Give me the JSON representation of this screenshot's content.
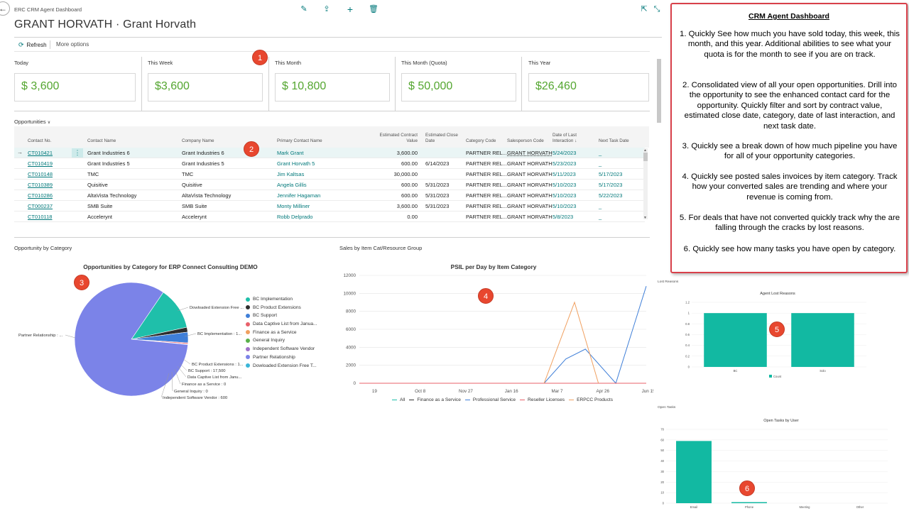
{
  "app_title": "ERC CRM Agent Dashboard",
  "page_title": "GRANT HORVATH · Grant Horvath",
  "toolbar": {
    "back_icon": "arrow-left-icon",
    "edit_icon": "pencil-icon",
    "share_icon": "share-icon",
    "new_icon": "plus-icon",
    "delete_icon": "trash-icon",
    "popout_icon": "popout-icon",
    "collapse_icon": "collapse-icon"
  },
  "actions": {
    "refresh": "Refresh",
    "more": "More options"
  },
  "cues": [
    {
      "label": "Today",
      "value": "$ 3,600"
    },
    {
      "label": "This Week",
      "value": "$3,600"
    },
    {
      "label": "This Month",
      "value": "$ 10,800"
    },
    {
      "label": "This Month (Quota)",
      "value": "$ 50,000"
    },
    {
      "label": "This Year",
      "value": "$26,460"
    }
  ],
  "opportunities": {
    "section_label": "Opportunities",
    "columns": {
      "contact_no": "Contact No.",
      "contact_name": "Contact Name",
      "company_name": "Company Name",
      "primary_contact": "Primary Contact Name",
      "est_value_1": "Estimated Contract",
      "est_value_2": "Value",
      "est_close_1": "Estimated Close",
      "est_close_2": "Date",
      "category": "Category Code",
      "salesperson": "Salesperson Code",
      "last_int_1": "Date of Last",
      "last_int_2": "Interaction ↓",
      "next_task": "Next Task Date"
    },
    "rows": [
      {
        "contact_no": "CT010421",
        "contact_name": "Grant Industries 6",
        "company": "Grant Industries 6",
        "primary": "Mark Grant",
        "value": "3,600.00",
        "close": "",
        "category": "PARTNER REL...",
        "salesperson": "GRANT HORVATH",
        "last": "5/24/2023",
        "next": "_"
      },
      {
        "contact_no": "CT010419",
        "contact_name": "Grant Industries 5",
        "company": "Grant Industries 5",
        "primary": "Grant Horvath 5",
        "value": "600.00",
        "close": "6/14/2023",
        "category": "PARTNER REL...",
        "salesperson": "GRANT HORVATH",
        "last": "5/23/2023",
        "next": "_"
      },
      {
        "contact_no": "CT010148",
        "contact_name": "TMC",
        "company": "TMC",
        "primary": "Jim Kaltsas",
        "value": "30,000.00",
        "close": "",
        "category": "PARTNER REL...",
        "salesperson": "GRANT HORVATH",
        "last": "5/11/2023",
        "next": "5/17/2023"
      },
      {
        "contact_no": "CT010389",
        "contact_name": "Quisitive",
        "company": "Quisitive",
        "primary": "Angela Gillis",
        "value": "600.00",
        "close": "5/31/2023",
        "category": "PARTNER REL...",
        "salesperson": "GRANT HORVATH",
        "last": "5/10/2023",
        "next": "5/17/2023"
      },
      {
        "contact_no": "CT010286",
        "contact_name": "AltaVista Technology",
        "company": "AltaVista Technology",
        "primary": "Jennifer Hagaman",
        "value": "600.00",
        "close": "5/31/2023",
        "category": "PARTNER REL...",
        "salesperson": "GRANT HORVATH",
        "last": "5/10/2023",
        "next": "5/22/2023"
      },
      {
        "contact_no": "CT000237",
        "contact_name": "SMB Suite",
        "company": "SMB Suite",
        "primary": "Monty Milliner",
        "value": "3,600.00",
        "close": "5/31/2023",
        "category": "PARTNER REL...",
        "salesperson": "GRANT HORVATH",
        "last": "5/10/2023",
        "next": "_"
      },
      {
        "contact_no": "CT010118",
        "contact_name": "Accelerynt",
        "company": "Accelerynt",
        "primary": "Robb Delprado",
        "value": "0.00",
        "close": "",
        "category": "PARTNER REL...",
        "salesperson": "GRANT HORVATH",
        "last": "5/8/2023",
        "next": "_"
      }
    ]
  },
  "badges": [
    "1",
    "2",
    "3",
    "4",
    "5",
    "6"
  ],
  "callout": {
    "title": "CRM Agent Dashboard",
    "points": [
      "1. Quickly See how much you have sold today, this week, this month, and this year. Additional abilities to see what your quota is for the month to see if you are on track.",
      "2. Consolidated view of all your open opportunities. Drill into the opportunity to see the enhanced contact card for the opportunity. Quickly filter and sort by contract value, estimated close date, category, date of last interaction, and next task date.",
      "3. Quickly see a break down of how much pipeline you have for all of your opportunity categories.",
      "4. Quickly see posted sales invoices by item category. Track how your converted sales are trending and where your revenue is coming from.",
      "5. For deals that have not converted quickly track why the are falling through the cracks by lost reasons.",
      "6. Quickly see how many tasks you have open by category."
    ]
  },
  "charts": {
    "pie_section": "Opportunity by Category",
    "line_section": "Sales by Item Cat/Resource Group",
    "lost_section": "Lost Reasons",
    "tasks_section": "Open Tasks"
  },
  "chart_data": [
    {
      "type": "pie",
      "title": "Opportunities by Category for ERP Connect Consulting DEMO",
      "categories": [
        "BC Implementation",
        "BC Product Extensions",
        "BC Support",
        "Data Captive List from Janua...",
        "Finance as a Service",
        "General Inquiry",
        "Independent Software Vendor",
        "Partner Relationship",
        "Dowloaded Extension Free T..."
      ],
      "colors": [
        "#1fbfaa",
        "#2e2e2e",
        "#3f7fd8",
        "#e8606a",
        "#f0a060",
        "#59b04a",
        "#a070c8",
        "#7b83e8",
        "#3ab5d8"
      ],
      "values": [
        70000,
        8000,
        17500,
        2000,
        0,
        0,
        600,
        480000,
        200
      ],
      "slice_labels": [
        "Dowloaded Extension Free ...",
        "BC Implementation : 1...",
        "BC Product Extensions : 1...",
        "BC Support : 17,500",
        "Data Captive List from Janu...",
        "Finance as a Service : 0",
        "General Inquiry : 0",
        "Independent Software Vendor : 600",
        "Partner Relationship : ..."
      ],
      "legend": "right"
    },
    {
      "type": "line",
      "title": "PSIL per Day by Item Category",
      "x_ticks": [
        "19",
        "Oct 8",
        "Nov 27",
        "Jan 16",
        "Mar 7",
        "Apr 26",
        "Jun 15"
      ],
      "y_ticks": [
        "0",
        "2000",
        "4000",
        "6000",
        "8000",
        "10000",
        "12000"
      ],
      "ylim": [
        0,
        12000
      ],
      "xlim": [
        0,
        6.6
      ],
      "series": [
        {
          "name": "All",
          "color": "#1fbfaa",
          "points": [
            [
              0,
              0
            ],
            [
              6.6,
              0
            ]
          ]
        },
        {
          "name": "Finance as a Service",
          "color": "#333333",
          "points": [
            [
              0,
              0
            ],
            [
              6.6,
              0
            ]
          ]
        },
        {
          "name": "Professional Service",
          "color": "#3f7fd8",
          "points": [
            [
              0,
              0
            ],
            [
              4.25,
              0
            ],
            [
              4.75,
              2700
            ],
            [
              5.2,
              3800
            ],
            [
              5.9,
              0
            ],
            [
              6.6,
              10800
            ]
          ]
        },
        {
          "name": "Reseller Licenses",
          "color": "#e8606a",
          "points": [
            [
              0,
              0
            ],
            [
              6.6,
              0
            ]
          ]
        },
        {
          "name": "ERPCC Products",
          "color": "#f0a060",
          "points": [
            [
              4.25,
              0
            ],
            [
              4.95,
              9000
            ],
            [
              5.5,
              0
            ]
          ]
        }
      ],
      "legend": "bottom"
    },
    {
      "type": "bar",
      "title": "Agent Lost Reasons",
      "categories": [
        "BC",
        "Solo"
      ],
      "values": [
        1,
        1
      ],
      "ylim": [
        0,
        1.2
      ],
      "y_ticks": [
        "0",
        "0.2",
        "0.4",
        "0.6",
        "0.8",
        "1",
        "1.2"
      ],
      "legend_label": "Count",
      "color": "#12b9a2"
    },
    {
      "type": "bar",
      "title": "Open Tasks by User",
      "categories": [
        "Email",
        "Phone",
        "Meeting",
        "Other"
      ],
      "values": [
        59,
        1,
        0,
        0
      ],
      "ylim": [
        0,
        70
      ],
      "y_ticks": [
        "0",
        "10",
        "20",
        "30",
        "40",
        "50",
        "60",
        "70"
      ],
      "color": "#12b9a2"
    }
  ]
}
